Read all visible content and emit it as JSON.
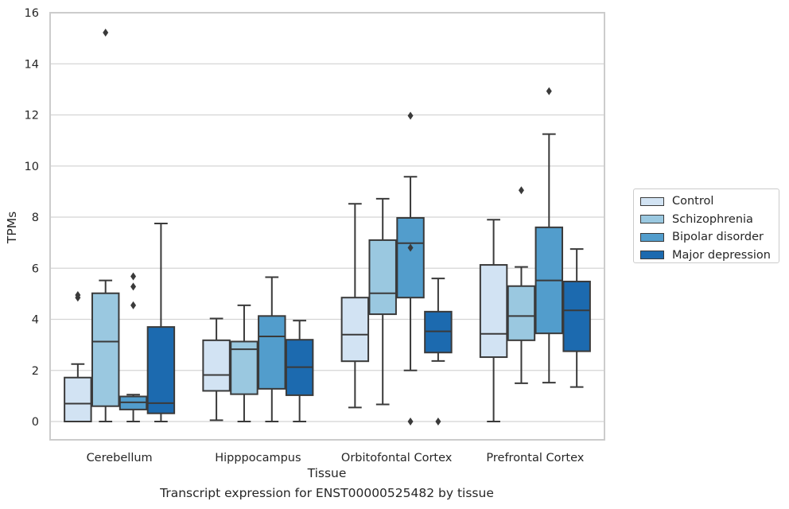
{
  "chart_data": {
    "type": "box",
    "title": "Transcript expression for ENST00000525482 by tissue",
    "xlabel": "Tissue",
    "ylabel": "TPMs",
    "ylim": [
      -0.7,
      16
    ],
    "yticks": [
      0,
      2,
      4,
      6,
      8,
      10,
      12,
      14,
      16
    ],
    "grid": "horizontal",
    "legend_position": "right",
    "categories": [
      "Cerebellum",
      "Hipppocampus",
      "Orbitofontal Cortex",
      "Prefrontal Cortex"
    ],
    "series": [
      {
        "name": "Control",
        "color": "#d2e3f3",
        "boxes": [
          {
            "whislo": 0,
            "q1": 0,
            "med": 0.7,
            "q3": 1.72,
            "whishi": 2.25,
            "fliers": [
              4.85,
              4.95
            ]
          },
          {
            "whislo": 0.05,
            "q1": 1.2,
            "med": 1.82,
            "q3": 3.18,
            "whishi": 4.03,
            "fliers": []
          },
          {
            "whislo": 0.55,
            "q1": 2.36,
            "med": 3.4,
            "q3": 4.85,
            "whishi": 8.52,
            "fliers": []
          },
          {
            "whislo": 0,
            "q1": 2.52,
            "med": 3.43,
            "q3": 6.13,
            "whishi": 7.9,
            "fliers": []
          }
        ]
      },
      {
        "name": "Schizophrenia",
        "color": "#9ac8e0",
        "boxes": [
          {
            "whislo": 0,
            "q1": 0.6,
            "med": 3.13,
            "q3": 5.02,
            "whishi": 5.52,
            "fliers": [
              15.22
            ]
          },
          {
            "whislo": 0,
            "q1": 1.07,
            "med": 2.83,
            "q3": 3.13,
            "whishi": 4.55,
            "fliers": []
          },
          {
            "whislo": 0.67,
            "q1": 4.2,
            "med": 5.02,
            "q3": 7.1,
            "whishi": 8.72,
            "fliers": []
          },
          {
            "whislo": 1.5,
            "q1": 3.18,
            "med": 4.13,
            "q3": 5.3,
            "whishi": 6.05,
            "fliers": [
              9.05
            ]
          }
        ]
      },
      {
        "name": "Bipolar disorder",
        "color": "#529dcc",
        "boxes": [
          {
            "whislo": 0,
            "q1": 0.47,
            "med": 0.75,
            "q3": 0.98,
            "whishi": 1.05,
            "fliers": [
              4.55,
              5.28,
              5.68
            ]
          },
          {
            "whislo": 0,
            "q1": 1.28,
            "med": 3.33,
            "q3": 4.13,
            "whishi": 5.65,
            "fliers": []
          },
          {
            "whislo": 2.0,
            "q1": 4.85,
            "med": 6.98,
            "q3": 7.97,
            "whishi": 9.58,
            "fliers": [
              0,
              6.8,
              11.97
            ]
          },
          {
            "whislo": 1.52,
            "q1": 3.45,
            "med": 5.52,
            "q3": 7.6,
            "whishi": 11.25,
            "fliers": [
              12.93
            ]
          }
        ]
      },
      {
        "name": "Major depression",
        "color": "#1c6aaf",
        "boxes": [
          {
            "whislo": 0,
            "q1": 0.32,
            "med": 0.72,
            "q3": 3.7,
            "whishi": 7.75,
            "fliers": []
          },
          {
            "whislo": 0,
            "q1": 1.03,
            "med": 2.13,
            "q3": 3.2,
            "whishi": 3.95,
            "fliers": []
          },
          {
            "whislo": 2.37,
            "q1": 2.7,
            "med": 3.53,
            "q3": 4.3,
            "whishi": 5.6,
            "fliers": [
              0
            ]
          },
          {
            "whislo": 1.35,
            "q1": 2.75,
            "med": 4.35,
            "q3": 5.48,
            "whishi": 6.75,
            "fliers": []
          }
        ]
      }
    ]
  }
}
